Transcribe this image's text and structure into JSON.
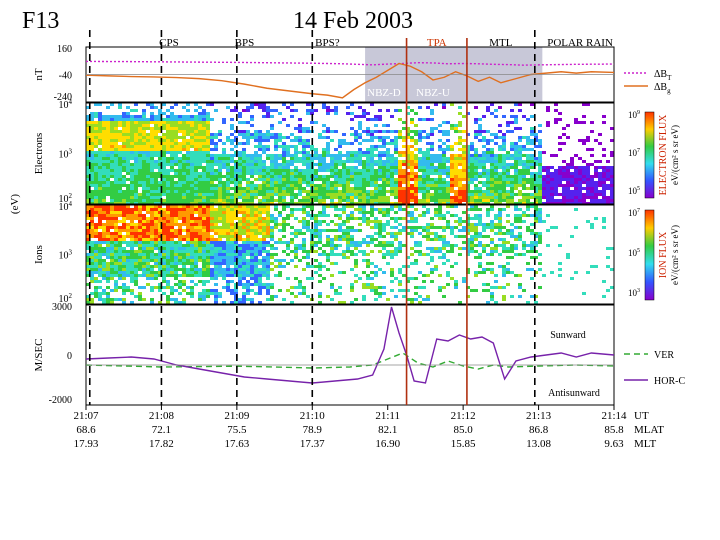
{
  "header": {
    "satellite": "F13",
    "date": "14 Feb 2003"
  },
  "chart_data": [
    {
      "type": "line",
      "panel": "magnetic field",
      "ylabel": "nT",
      "yticks": [
        "160",
        "-40",
        "-240"
      ],
      "ylim": [
        -240,
        160
      ],
      "regions": [
        "CPS",
        "BPS",
        "BPS?",
        "TPA",
        "MTL",
        "POLAR RAIN"
      ],
      "imf_labels": [
        "NBZ-D",
        "NBZ-U"
      ],
      "series": [
        {
          "name": "ΔB_T",
          "color": "#cc22cc",
          "style": "dotted",
          "x": [
            0,
            0.5,
            1,
            1.5,
            2,
            2.5,
            3,
            3.2,
            3.4,
            3.6,
            3.8,
            4,
            4.2,
            4.4,
            4.6,
            4.8,
            5,
            5.2,
            5.4,
            5.6,
            5.8,
            6,
            6.5,
            7
          ],
          "y": [
            55,
            54,
            52,
            50,
            48,
            45,
            42,
            40,
            38,
            34,
            30,
            36,
            40,
            46,
            44,
            38,
            40,
            38,
            34,
            32,
            28,
            30,
            34,
            36
          ]
        },
        {
          "name": "ΔB_g",
          "color": "#e07020",
          "style": "solid",
          "x": [
            0,
            0.3,
            0.6,
            0.9,
            1.2,
            1.5,
            1.8,
            2.1,
            2.4,
            2.7,
            3,
            3.2,
            3.4,
            3.55,
            3.7,
            3.85,
            4,
            4.15,
            4.3,
            4.45,
            4.6,
            4.75,
            4.9,
            5.05,
            5.2,
            5.35,
            5.5,
            5.7,
            5.9,
            6.1,
            6.3,
            6.5,
            6.7,
            7
          ],
          "y": [
            -45,
            -50,
            -55,
            -58,
            -62,
            -70,
            -85,
            -110,
            -140,
            -160,
            -180,
            -190,
            -210,
            -150,
            -100,
            -60,
            -10,
            40,
            20,
            -20,
            -80,
            -60,
            -20,
            -50,
            -90,
            -60,
            -100,
            -70,
            -40,
            -30,
            -20,
            -30,
            -20,
            -25
          ]
        }
      ]
    },
    {
      "type": "heatmap",
      "panel": "electron spectrogram",
      "ylabel": "Electrons",
      "yticks": [
        "10^4",
        "10^3",
        "10^2"
      ],
      "colorbar_label": "ELECTRON FLUX",
      "colorbar_units": "eV/(cm² s sr eV)",
      "colorbar_ticks": [
        "10^9",
        "10^7",
        "10^5"
      ]
    },
    {
      "type": "heatmap",
      "panel": "ion spectrogram",
      "ylabel": "Ions",
      "yticks": [
        "10^4",
        "10^3",
        "10^2"
      ],
      "shared_ylabel": "(eV)",
      "colorbar_label": "ION FLUX",
      "colorbar_units": "eV/(cm² s sr eV)",
      "colorbar_ticks": [
        "10^7",
        "10^5",
        "10^3"
      ]
    },
    {
      "type": "line",
      "panel": "ion drift velocity",
      "ylabel": "M/SEC",
      "yticks": [
        "3000",
        "0",
        "-2000"
      ],
      "ylim": [
        -2000,
        3000
      ],
      "annotations": [
        "Sunward",
        "Antisunward"
      ],
      "series": [
        {
          "name": "VER",
          "color": "#33aa33",
          "style": "dashed",
          "x": [
            0,
            0.5,
            1,
            1.5,
            2,
            2.5,
            3,
            3.5,
            3.8,
            4,
            4.2,
            4.4,
            4.6,
            4.8,
            5,
            5.2,
            5.4,
            5.6,
            6,
            6.5,
            7
          ],
          "y": [
            0,
            -50,
            -100,
            -80,
            -60,
            -100,
            -150,
            -100,
            0,
            300,
            600,
            100,
            -100,
            200,
            -50,
            -200,
            0,
            -100,
            -50,
            0,
            -50
          ]
        },
        {
          "name": "HOR-C",
          "color": "#7722aa",
          "style": "solid",
          "x": [
            0,
            0.3,
            0.6,
            0.9,
            1.2,
            1.5,
            1.8,
            2.1,
            2.4,
            2.7,
            3,
            3.3,
            3.6,
            3.8,
            3.95,
            4.05,
            4.15,
            4.25,
            4.35,
            4.5,
            4.65,
            4.8,
            4.95,
            5.1,
            5.25,
            5.4,
            5.55,
            5.7,
            5.9,
            6.1,
            6.3,
            6.5,
            6.7,
            7
          ],
          "y": [
            300,
            350,
            400,
            300,
            0,
            -200,
            -400,
            -600,
            -700,
            -800,
            -900,
            -800,
            -700,
            -500,
            800,
            2900,
            1600,
            500,
            -800,
            -900,
            1300,
            1200,
            1500,
            1300,
            1400,
            1100,
            -700,
            200,
            400,
            500,
            600,
            400,
            600,
            500
          ]
        }
      ]
    }
  ],
  "axis": {
    "ut_ticks": [
      "21:07",
      "21:08",
      "21:09",
      "21:10",
      "21:11",
      "21:12",
      "21:13",
      "21:14"
    ],
    "mlat": [
      "68.6",
      "72.1",
      "75.5",
      "78.9",
      "82.1",
      "85.0",
      "86.8",
      "85.8"
    ],
    "mlt": [
      "17.93",
      "17.82",
      "17.63",
      "17.37",
      "16.90",
      "15.85",
      "13.08",
      "9.63"
    ],
    "ut_label": "UT",
    "mlat_label": "MLAT",
    "mlt_label": "MLT"
  },
  "colors": {
    "region_text": "#000000",
    "tpa_text": "#cc3300",
    "red_line": "#b03010",
    "shade": "#c8c8d8"
  }
}
